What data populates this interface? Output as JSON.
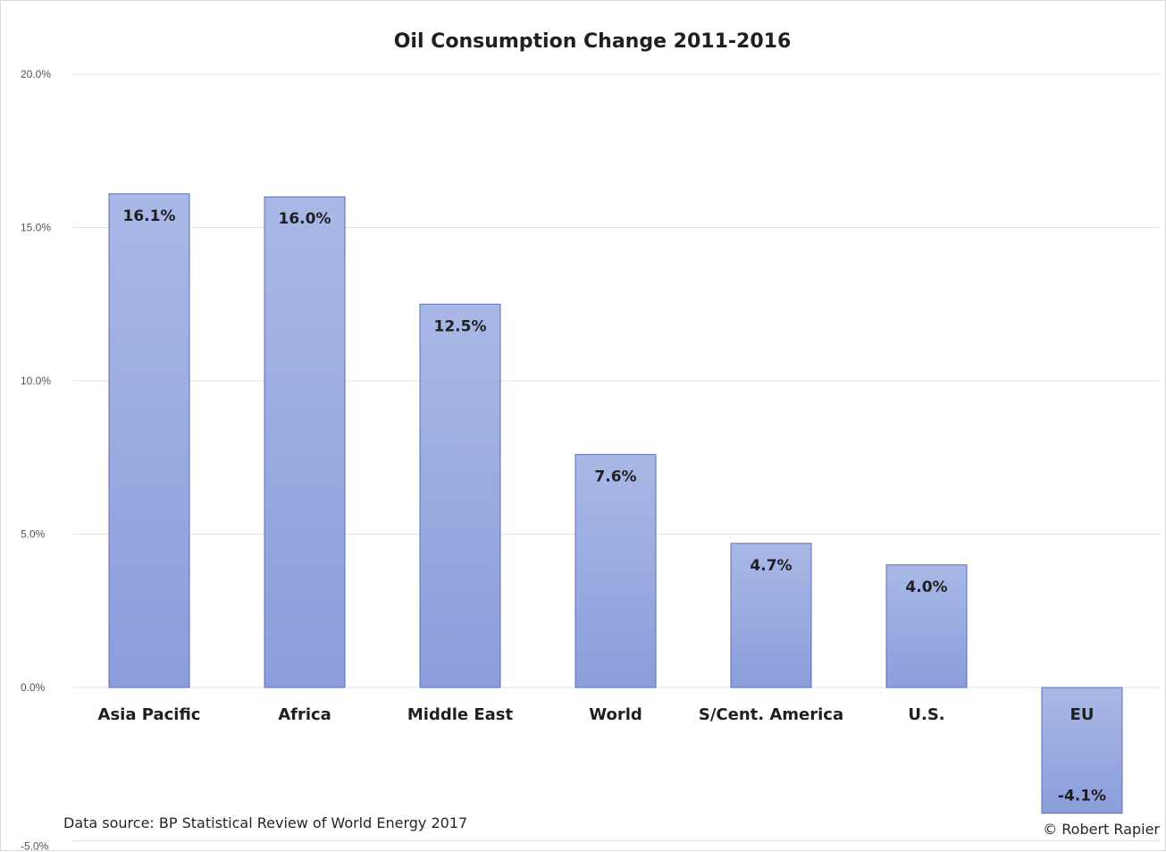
{
  "chart_data": {
    "type": "bar",
    "title": "Oil Consumption Change 2011-2016",
    "categories": [
      "Asia Pacific",
      "Africa",
      "Middle East",
      "World",
      "S/Cent. America",
      "U.S.",
      "EU"
    ],
    "values": [
      16.1,
      16.0,
      12.5,
      7.6,
      4.7,
      4.0,
      -4.1
    ],
    "data_labels": [
      "16.1%",
      "16.0%",
      "12.5%",
      "7.6%",
      "4.7%",
      "4.0%",
      "-4.1%"
    ],
    "yticks": [
      "20.0%",
      "15.0%",
      "10.0%",
      "5.0%",
      "0.0%",
      "-5.0%"
    ],
    "ytick_values": [
      20,
      15,
      10,
      5,
      0,
      -5
    ],
    "ylim": [
      -5,
      20
    ],
    "xlabel": "",
    "ylabel": "",
    "grid": true,
    "legend": "none",
    "bar_color_top": "#a9b8e6",
    "bar_color_bottom": "#8b9edb",
    "bar_border_color": "#5b6fb8"
  },
  "footer": {
    "source": "Data source: BP Statistical Review of World Energy 2017",
    "credit": "© Robert Rapier"
  }
}
